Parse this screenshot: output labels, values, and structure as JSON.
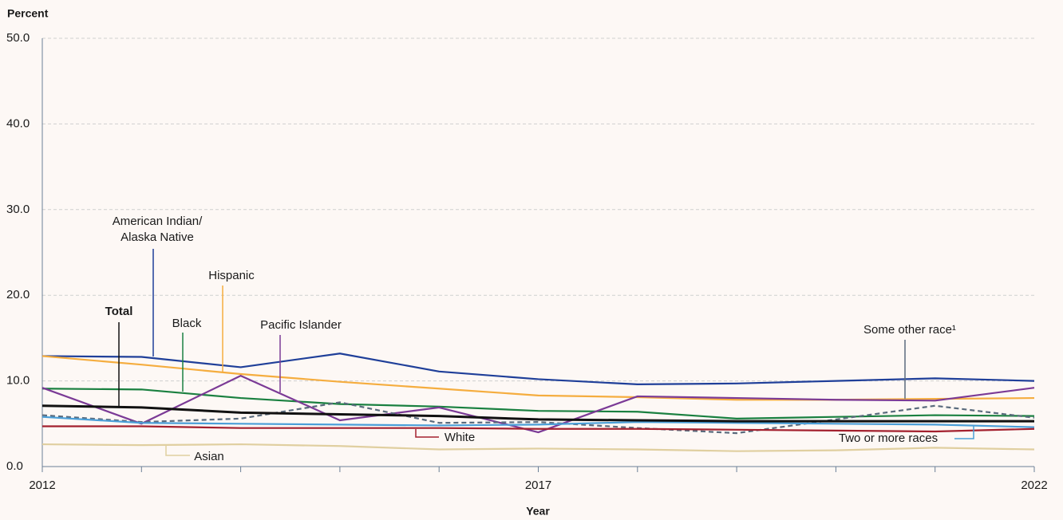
{
  "chart_data": {
    "type": "line",
    "y_axis_label": "Percent",
    "x_axis_label": "Year",
    "x": [
      2012,
      2013,
      2014,
      2015,
      2016,
      2017,
      2018,
      2019,
      2020,
      2021,
      2022
    ],
    "xlim": [
      2012,
      2022
    ],
    "xticks": [
      2012,
      2017,
      2022
    ],
    "xminor_ticks": [
      2013,
      2014,
      2015,
      2016,
      2018,
      2019,
      2020,
      2021
    ],
    "ylim": [
      0,
      50
    ],
    "yticks": [
      {
        "value": 0,
        "label": "0.0"
      },
      {
        "value": 10,
        "label": "10.0"
      },
      {
        "value": 20,
        "label": "20.0"
      },
      {
        "value": 30,
        "label": "30.0"
      },
      {
        "value": 40,
        "label": "40.0"
      },
      {
        "value": 50,
        "label": "50.0"
      }
    ],
    "grid": true,
    "series": [
      {
        "name": "American Indian/ Alaska Native",
        "color": "#1f3f99",
        "values": [
          12.9,
          12.8,
          11.6,
          13.2,
          11.1,
          10.2,
          9.6,
          9.7,
          10.0,
          10.3,
          10.0
        ]
      },
      {
        "name": "Hispanic",
        "color": "#f5ad3f",
        "values": [
          12.9,
          11.9,
          10.8,
          9.9,
          9.1,
          8.3,
          8.1,
          7.8,
          7.8,
          7.9,
          8.0
        ]
      },
      {
        "name": "Black",
        "color": "#1a8040",
        "values": [
          9.1,
          9.0,
          8.0,
          7.3,
          7.0,
          6.5,
          6.4,
          5.6,
          5.8,
          6.0,
          5.9
        ]
      },
      {
        "name": "Pacific Islander",
        "color": "#7b3a96",
        "values": [
          9.2,
          5.0,
          10.6,
          5.4,
          6.9,
          4.0,
          8.2,
          8.0,
          7.8,
          7.7,
          9.2
        ]
      },
      {
        "name": "Some other race¹",
        "color": "#5a6b7d",
        "dashed": true,
        "values": [
          6.0,
          5.2,
          5.6,
          7.5,
          5.1,
          5.2,
          4.5,
          3.9,
          5.5,
          7.1,
          5.7
        ]
      },
      {
        "name": "Two or more races",
        "color": "#4b9fd8",
        "values": [
          5.8,
          5.1,
          5.0,
          4.9,
          4.8,
          4.9,
          5.2,
          5.1,
          5.0,
          4.9,
          4.6
        ]
      },
      {
        "name": "White",
        "color": "#a3202e",
        "values": [
          4.7,
          4.7,
          4.5,
          4.5,
          4.5,
          4.4,
          4.4,
          4.3,
          4.2,
          4.1,
          4.4
        ]
      },
      {
        "name": "Asian",
        "color": "#e0cfa0",
        "values": [
          2.6,
          2.5,
          2.6,
          2.4,
          2.0,
          2.1,
          2.0,
          1.8,
          1.9,
          2.2,
          2.0
        ]
      },
      {
        "name": "Total",
        "color": "#111111",
        "bold": true,
        "values": [
          7.1,
          6.9,
          6.3,
          6.1,
          5.9,
          5.5,
          5.4,
          5.3,
          5.3,
          5.3,
          5.3
        ]
      }
    ]
  }
}
